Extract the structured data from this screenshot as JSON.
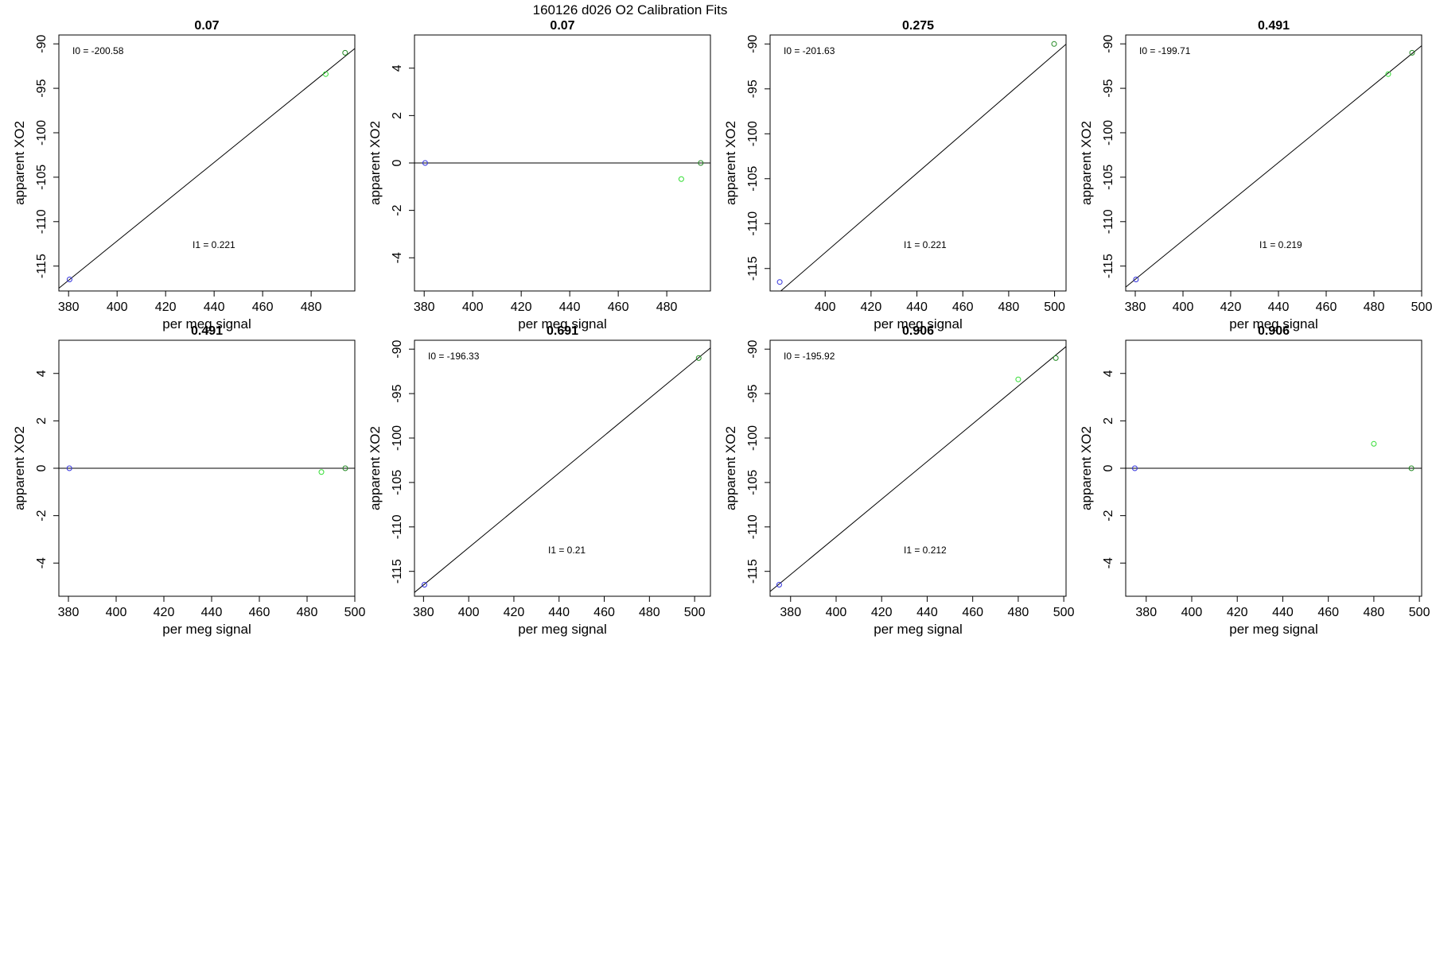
{
  "figure": {
    "title": "160126   d026   O2 Calibration Fits"
  },
  "chart_data": [
    {
      "type": "scatter",
      "title": "0.07",
      "xlabel": "per meg signal",
      "ylabel": "apparent XO2",
      "xlim": [
        376,
        498
      ],
      "ylim": [
        -117.8,
        -89.0
      ],
      "xticks": [
        380,
        400,
        420,
        440,
        460,
        480
      ],
      "yticks": [
        -115,
        -110,
        -105,
        -100,
        -95,
        -90
      ],
      "grid": false,
      "fit_line": {
        "intercept": -200.58,
        "slope": 0.221
      },
      "annotations": [
        {
          "label": "I0 = ",
          "value": "-200.58"
        },
        {
          "label": "I1 = ",
          "value": "0.221"
        }
      ],
      "series": [
        {
          "color": "#3333dd",
          "points": [
            [
              380.4,
              -116.5
            ]
          ]
        },
        {
          "color": "#33dd33",
          "points": [
            [
              486.0,
              -93.4
            ]
          ]
        },
        {
          "color": "#228822",
          "points": [
            [
              494.0,
              -91.0
            ]
          ]
        }
      ]
    },
    {
      "type": "scatter",
      "title": "0.07",
      "xlabel": "per meg signal",
      "ylabel": "apparent XO2",
      "xlim": [
        376,
        498
      ],
      "ylim": [
        -5.4,
        5.4
      ],
      "xticks": [
        380,
        400,
        420,
        440,
        460,
        480
      ],
      "yticks": [
        -4,
        -2,
        0,
        2,
        4
      ],
      "grid": false,
      "fit_line": {
        "intercept": 0,
        "slope": 0
      },
      "annotations": [],
      "series": [
        {
          "color": "#3333dd",
          "points": [
            [
              380.4,
              0.0
            ]
          ]
        },
        {
          "color": "#33dd33",
          "points": [
            [
              486.0,
              -0.68
            ]
          ]
        },
        {
          "color": "#228822",
          "points": [
            [
              494.0,
              0.0
            ]
          ]
        }
      ]
    },
    {
      "type": "scatter",
      "title": "0.275",
      "xlabel": "per meg signal",
      "ylabel": "apparent XO2",
      "xlim": [
        376,
        505
      ],
      "ylim": [
        -117.5,
        -89.0
      ],
      "xticks": [
        400,
        420,
        440,
        460,
        480,
        500
      ],
      "yticks": [
        -115,
        -110,
        -105,
        -100,
        -95,
        -90
      ],
      "grid": false,
      "fit_line": {
        "intercept": -201.63,
        "slope": 0.221
      },
      "annotations": [
        {
          "label": "I0 = ",
          "value": "-201.63"
        },
        {
          "label": "I1 = ",
          "value": "0.221"
        }
      ],
      "series": [
        {
          "color": "#3333dd",
          "points": [
            [
              380.2,
              -116.5
            ]
          ]
        },
        {
          "color": "#228822",
          "points": [
            [
              499.8,
              -90.0
            ]
          ]
        }
      ]
    },
    {
      "type": "scatter",
      "title": "0.491",
      "xlabel": "per meg signal",
      "ylabel": "apparent XO2",
      "xlim": [
        376,
        500
      ],
      "ylim": [
        -117.8,
        -89.0
      ],
      "xticks": [
        380,
        400,
        420,
        440,
        460,
        480,
        500
      ],
      "yticks": [
        -115,
        -110,
        -105,
        -100,
        -95,
        -90
      ],
      "grid": false,
      "fit_line": {
        "intercept": -199.71,
        "slope": 0.219
      },
      "annotations": [
        {
          "label": "I0 = ",
          "value": "-199.71"
        },
        {
          "label": "I1 = ",
          "value": "0.219"
        }
      ],
      "series": [
        {
          "color": "#3333dd",
          "points": [
            [
              380.3,
              -116.5
            ]
          ]
        },
        {
          "color": "#33dd33",
          "points": [
            [
              486.0,
              -93.4
            ]
          ]
        },
        {
          "color": "#228822",
          "points": [
            [
              496.0,
              -91.0
            ]
          ]
        }
      ]
    },
    {
      "type": "scatter",
      "title": "0.491",
      "xlabel": "per meg signal",
      "ylabel": "apparent XO2",
      "xlim": [
        376,
        500
      ],
      "ylim": [
        -5.4,
        5.4
      ],
      "xticks": [
        380,
        400,
        420,
        440,
        460,
        480,
        500
      ],
      "yticks": [
        -4,
        -2,
        0,
        2,
        4
      ],
      "grid": false,
      "fit_line": {
        "intercept": 0,
        "slope": 0
      },
      "annotations": [],
      "series": [
        {
          "color": "#3333dd",
          "points": [
            [
              380.4,
              0.0
            ]
          ]
        },
        {
          "color": "#33dd33",
          "points": [
            [
              486.0,
              -0.16
            ]
          ]
        },
        {
          "color": "#228822",
          "points": [
            [
              496.0,
              0.0
            ]
          ]
        }
      ]
    },
    {
      "type": "scatter",
      "title": "0.691",
      "xlabel": "per meg signal",
      "ylabel": "apparent XO2",
      "xlim": [
        376,
        507
      ],
      "ylim": [
        -117.8,
        -89.0
      ],
      "xticks": [
        380,
        400,
        420,
        440,
        460,
        480,
        500
      ],
      "yticks": [
        -115,
        -110,
        -105,
        -100,
        -95,
        -90
      ],
      "grid": false,
      "fit_line": {
        "intercept": -196.33,
        "slope": 0.21
      },
      "annotations": [
        {
          "label": "I0 = ",
          "value": "-196.33"
        },
        {
          "label": "I1 = ",
          "value": "0.21"
        }
      ],
      "series": [
        {
          "color": "#3333dd",
          "points": [
            [
              380.4,
              -116.5
            ]
          ]
        },
        {
          "color": "#228822",
          "points": [
            [
              501.8,
              -91.0
            ]
          ]
        }
      ]
    },
    {
      "type": "scatter",
      "title": "0.906",
      "xlabel": "per meg signal",
      "ylabel": "apparent XO2",
      "xlim": [
        371,
        501
      ],
      "ylim": [
        -117.8,
        -89.0
      ],
      "xticks": [
        380,
        400,
        420,
        440,
        460,
        480,
        500
      ],
      "yticks": [
        -115,
        -110,
        -105,
        -100,
        -95,
        -90
      ],
      "grid": false,
      "fit_line": {
        "intercept": -195.92,
        "slope": 0.212
      },
      "annotations": [
        {
          "label": "I0 = ",
          "value": "-195.92"
        },
        {
          "label": "I1 = ",
          "value": "0.212"
        }
      ],
      "series": [
        {
          "color": "#3333dd",
          "points": [
            [
              375.0,
              -116.5
            ]
          ]
        },
        {
          "color": "#33dd33",
          "points": [
            [
              480.0,
              -93.4
            ]
          ]
        },
        {
          "color": "#228822",
          "points": [
            [
              496.5,
              -91.0
            ]
          ]
        }
      ]
    },
    {
      "type": "scatter",
      "title": "0.906",
      "xlabel": "per meg signal",
      "ylabel": "apparent XO2",
      "xlim": [
        371,
        501
      ],
      "ylim": [
        -5.4,
        5.4
      ],
      "xticks": [
        380,
        400,
        420,
        440,
        460,
        480,
        500
      ],
      "yticks": [
        -4,
        -2,
        0,
        2,
        4
      ],
      "grid": false,
      "fit_line": {
        "intercept": 0,
        "slope": 0
      },
      "annotations": [],
      "series": [
        {
          "color": "#3333dd",
          "points": [
            [
              375.0,
              0.0
            ]
          ]
        },
        {
          "color": "#33dd33",
          "points": [
            [
              480.0,
              1.03
            ]
          ]
        },
        {
          "color": "#228822",
          "points": [
            [
              496.5,
              0.0
            ]
          ]
        }
      ]
    }
  ]
}
